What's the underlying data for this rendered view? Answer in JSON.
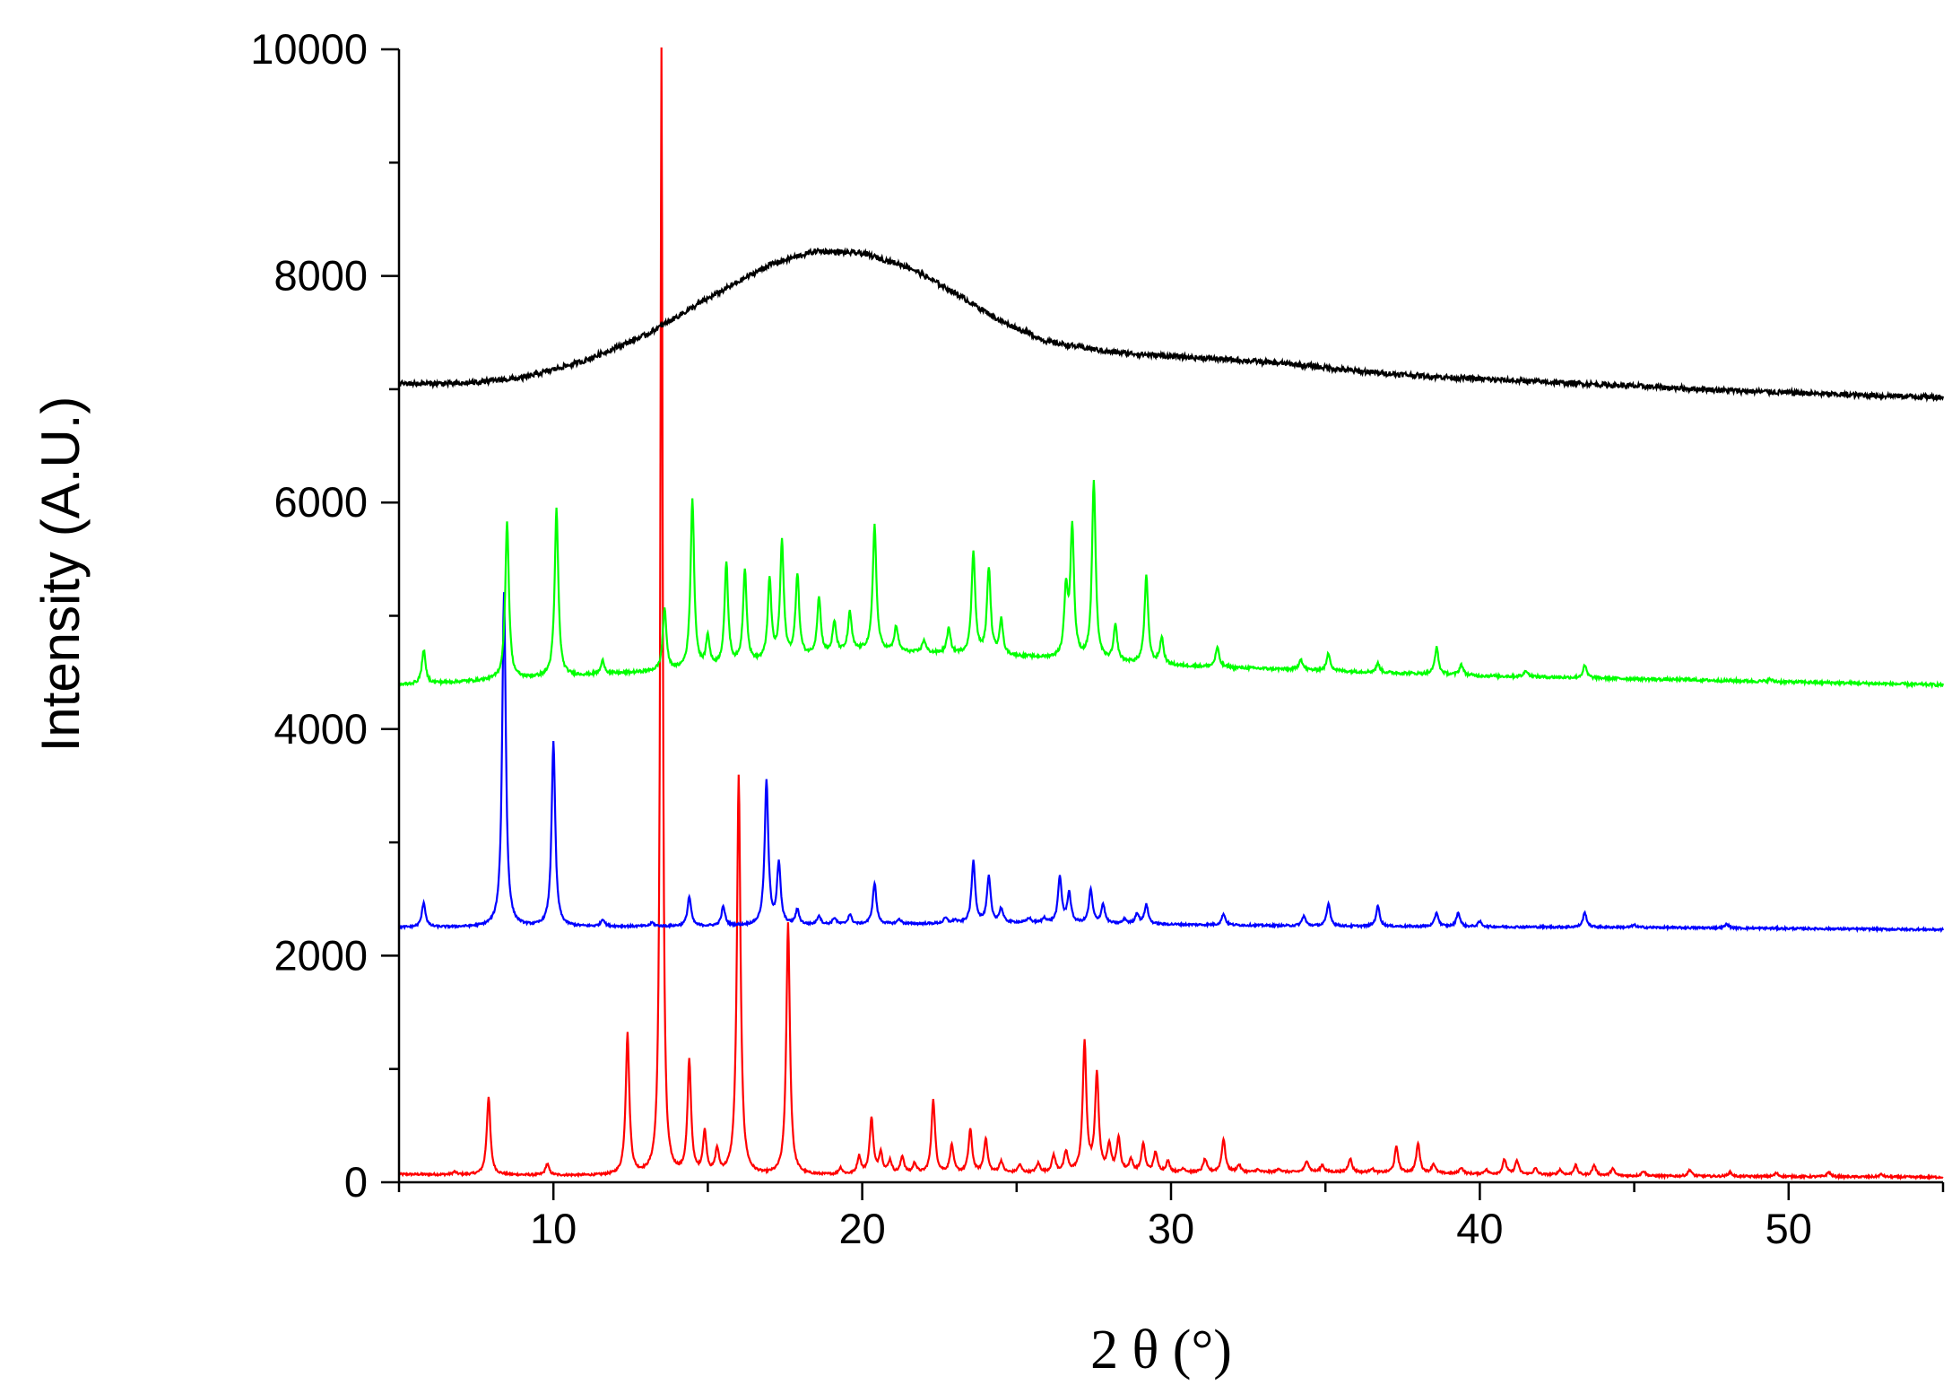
{
  "chart_data": {
    "type": "line",
    "xlabel": "2 θ (°)",
    "ylabel": "Intensity (A.U.)",
    "xlim": [
      5,
      55
    ],
    "ylim": [
      0,
      10000
    ],
    "x_ticks": [
      10,
      20,
      30,
      40,
      50
    ],
    "y_ticks": [
      0,
      2000,
      4000,
      6000,
      8000,
      10000
    ],
    "grid": false,
    "legend": "none",
    "series": [
      {
        "color": "#ff0000",
        "baseline": [
          [
            5,
            70
          ],
          [
            15,
            50
          ],
          [
            25,
            80
          ],
          [
            35,
            90
          ],
          [
            45,
            55
          ],
          [
            55,
            45
          ]
        ],
        "peaks": [
          [
            6.8,
            90
          ],
          [
            7.9,
            750
          ],
          [
            9.8,
            160
          ],
          [
            12.4,
            1300
          ],
          [
            13.5,
            10000
          ],
          [
            14.4,
            1050
          ],
          [
            14.9,
            420
          ],
          [
            15.3,
            260
          ],
          [
            16.0,
            3580
          ],
          [
            17.6,
            2280
          ],
          [
            19.3,
            120
          ],
          [
            19.9,
            220
          ],
          [
            20.3,
            560
          ],
          [
            20.6,
            250
          ],
          [
            20.9,
            180
          ],
          [
            21.3,
            220
          ],
          [
            21.7,
            160
          ],
          [
            22.3,
            720
          ],
          [
            22.9,
            320
          ],
          [
            23.5,
            460
          ],
          [
            24.0,
            380
          ],
          [
            24.5,
            180
          ],
          [
            25.1,
            150
          ],
          [
            25.7,
            160
          ],
          [
            26.2,
            230
          ],
          [
            26.6,
            260
          ],
          [
            27.2,
            1230
          ],
          [
            27.6,
            950
          ],
          [
            28.0,
            320
          ],
          [
            28.3,
            380
          ],
          [
            28.7,
            190
          ],
          [
            29.1,
            330
          ],
          [
            29.5,
            260
          ],
          [
            29.9,
            180
          ],
          [
            30.4,
            120
          ],
          [
            31.1,
            200
          ],
          [
            31.7,
            380
          ],
          [
            32.2,
            150
          ],
          [
            32.8,
            110
          ],
          [
            33.5,
            120
          ],
          [
            34.4,
            190
          ],
          [
            34.9,
            150
          ],
          [
            35.8,
            210
          ],
          [
            36.5,
            120
          ],
          [
            37.3,
            310
          ],
          [
            38.0,
            340
          ],
          [
            38.5,
            160
          ],
          [
            39.4,
            130
          ],
          [
            40.2,
            110
          ],
          [
            40.8,
            200
          ],
          [
            41.2,
            190
          ],
          [
            41.8,
            120
          ],
          [
            42.6,
            110
          ],
          [
            43.1,
            150
          ],
          [
            43.7,
            150
          ],
          [
            44.3,
            120
          ],
          [
            45.3,
            100
          ],
          [
            46.8,
            110
          ],
          [
            48.1,
            90
          ],
          [
            49.6,
            80
          ],
          [
            51.3,
            90
          ],
          [
            53.0,
            70
          ]
        ]
      },
      {
        "color": "#0000ff",
        "baseline": [
          [
            5,
            2250
          ],
          [
            15,
            2260
          ],
          [
            25,
            2290
          ],
          [
            35,
            2260
          ],
          [
            45,
            2250
          ],
          [
            55,
            2230
          ]
        ],
        "peaks": [
          [
            5.8,
            2470
          ],
          [
            8.4,
            5200
          ],
          [
            10.0,
            3880
          ],
          [
            11.6,
            2320
          ],
          [
            13.2,
            2290
          ],
          [
            14.4,
            2520
          ],
          [
            15.5,
            2430
          ],
          [
            16.9,
            3540
          ],
          [
            17.3,
            2800
          ],
          [
            17.9,
            2400
          ],
          [
            18.6,
            2350
          ],
          [
            19.1,
            2330
          ],
          [
            19.6,
            2360
          ],
          [
            20.4,
            2640
          ],
          [
            21.2,
            2320
          ],
          [
            22.7,
            2330
          ],
          [
            23.0,
            2310
          ],
          [
            23.6,
            2830
          ],
          [
            24.1,
            2690
          ],
          [
            24.5,
            2410
          ],
          [
            25.4,
            2330
          ],
          [
            25.9,
            2330
          ],
          [
            26.4,
            2690
          ],
          [
            26.7,
            2550
          ],
          [
            27.4,
            2580
          ],
          [
            27.8,
            2450
          ],
          [
            28.5,
            2320
          ],
          [
            28.9,
            2370
          ],
          [
            29.2,
            2450
          ],
          [
            31.7,
            2370
          ],
          [
            34.3,
            2350
          ],
          [
            35.1,
            2460
          ],
          [
            36.7,
            2440
          ],
          [
            38.6,
            2380
          ],
          [
            39.3,
            2380
          ],
          [
            40.0,
            2300
          ],
          [
            43.4,
            2380
          ],
          [
            45.0,
            2270
          ],
          [
            48.0,
            2280
          ]
        ]
      },
      {
        "color": "#00ff00",
        "baseline": [
          [
            5,
            4390
          ],
          [
            15,
            4530
          ],
          [
            20,
            4690
          ],
          [
            25,
            4640
          ],
          [
            30,
            4560
          ],
          [
            40,
            4470
          ],
          [
            55,
            4390
          ]
        ],
        "peaks": [
          [
            5.8,
            4700
          ],
          [
            8.5,
            5840
          ],
          [
            10.1,
            5950
          ],
          [
            11.6,
            4600
          ],
          [
            13.6,
            5060
          ],
          [
            14.5,
            6020
          ],
          [
            15.0,
            4800
          ],
          [
            15.6,
            5450
          ],
          [
            16.2,
            5400
          ],
          [
            17.0,
            5300
          ],
          [
            17.4,
            5640
          ],
          [
            17.9,
            5350
          ],
          [
            18.6,
            5150
          ],
          [
            19.1,
            4930
          ],
          [
            19.6,
            5020
          ],
          [
            20.4,
            5800
          ],
          [
            21.1,
            4900
          ],
          [
            22.0,
            4780
          ],
          [
            22.8,
            4880
          ],
          [
            23.6,
            5560
          ],
          [
            24.1,
            5410
          ],
          [
            24.5,
            4950
          ],
          [
            26.6,
            5200
          ],
          [
            26.8,
            5760
          ],
          [
            27.5,
            6180
          ],
          [
            28.2,
            4900
          ],
          [
            29.2,
            5350
          ],
          [
            29.7,
            4800
          ],
          [
            31.5,
            4720
          ],
          [
            34.2,
            4620
          ],
          [
            35.1,
            4670
          ],
          [
            36.7,
            4580
          ],
          [
            38.6,
            4720
          ],
          [
            39.4,
            4570
          ],
          [
            41.5,
            4520
          ],
          [
            43.4,
            4560
          ],
          [
            46.8,
            4440
          ],
          [
            49.4,
            4440
          ]
        ]
      },
      {
        "color": "#000000",
        "baseline": [
          [
            5,
            7050
          ],
          [
            7,
            7050
          ],
          [
            9,
            7100
          ],
          [
            11,
            7250
          ],
          [
            13,
            7480
          ],
          [
            15,
            7800
          ],
          [
            17,
            8100
          ],
          [
            18.5,
            8220
          ],
          [
            20,
            8200
          ],
          [
            21.5,
            8080
          ],
          [
            23,
            7850
          ],
          [
            24.5,
            7600
          ],
          [
            26,
            7420
          ],
          [
            28,
            7330
          ],
          [
            30,
            7290
          ],
          [
            32,
            7260
          ],
          [
            34,
            7220
          ],
          [
            36,
            7160
          ],
          [
            38,
            7120
          ],
          [
            40,
            7090
          ],
          [
            44,
            7040
          ],
          [
            48,
            6990
          ],
          [
            52,
            6950
          ],
          [
            55,
            6930
          ]
        ],
        "peaks": []
      }
    ]
  }
}
